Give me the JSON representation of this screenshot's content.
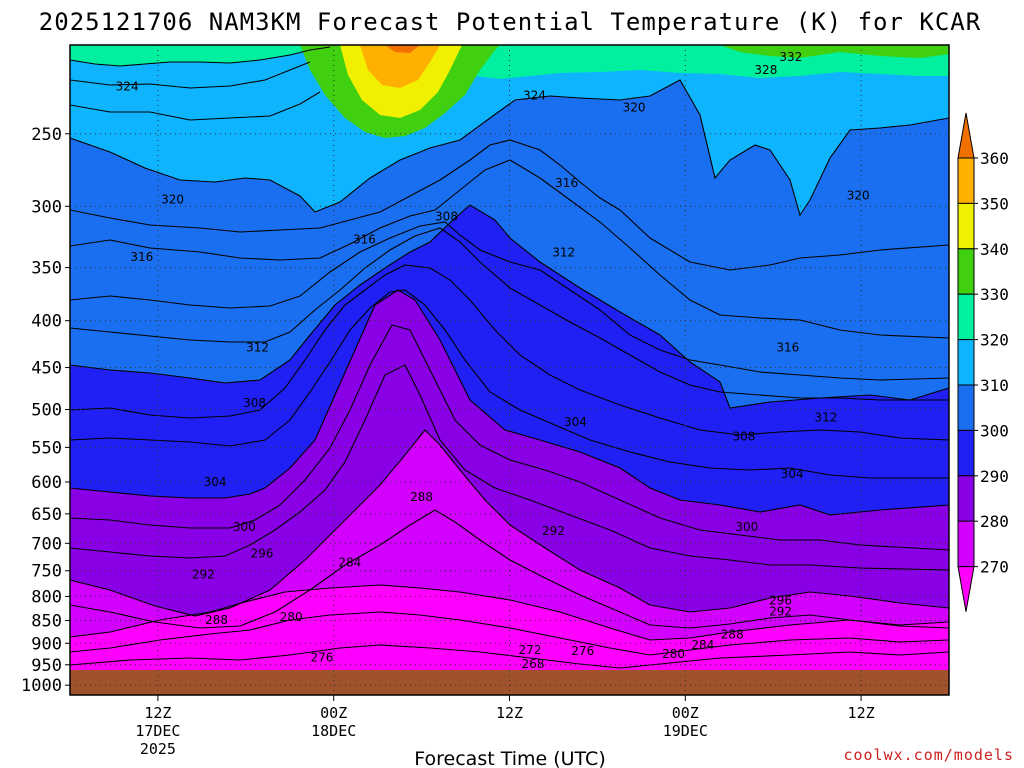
{
  "chart_data": {
    "type": "heatmap",
    "title": "2025121706 NAM3KM Forecast Potential Temperature (K) for KCAR",
    "xlabel": "Forecast Time (UTC)",
    "ylabel": "",
    "credit": "coolwx.com/models",
    "x_ticks": [
      {
        "h": 6,
        "line1": "12Z",
        "line2": "17DEC",
        "line3": "2025"
      },
      {
        "h": 18,
        "line1": "00Z",
        "line2": "18DEC",
        "line3": ""
      },
      {
        "h": 30,
        "line1": "12Z",
        "line2": "",
        "line3": ""
      },
      {
        "h": 42,
        "line1": "00Z",
        "line2": "19DEC",
        "line3": ""
      },
      {
        "h": 54,
        "line1": "12Z",
        "line2": "",
        "line3": ""
      }
    ],
    "x_range_hours": [
      0,
      60
    ],
    "y_ticks_hpa": [
      "250",
      "300",
      "350",
      "400",
      "450",
      "500",
      "550",
      "600",
      "650",
      "700",
      "750",
      "800",
      "850",
      "900",
      "950",
      "1000"
    ],
    "y_range_hpa": [
      200,
      1025
    ],
    "colorbar": {
      "levels": [
        "270",
        "280",
        "290",
        "300",
        "310",
        "320",
        "330",
        "340",
        "350",
        "360"
      ],
      "colors": [
        "#ff00ff",
        "#d200ff",
        "#8a00e6",
        "#2020f5",
        "#1a6ff0",
        "#0fb4ff",
        "#00f0a0",
        "#40d010",
        "#f0f000",
        "#ffb000",
        "#f07000"
      ]
    },
    "contour_labels": [
      {
        "text": "324",
        "h": 3.9,
        "p": 222
      },
      {
        "text": "320",
        "h": 7.0,
        "p": 295
      },
      {
        "text": "316",
        "h": 4.9,
        "p": 341
      },
      {
        "text": "312",
        "h": 12.8,
        "p": 428
      },
      {
        "text": "308",
        "h": 12.6,
        "p": 492
      },
      {
        "text": "304",
        "h": 9.9,
        "p": 600
      },
      {
        "text": "300",
        "h": 11.9,
        "p": 672
      },
      {
        "text": "296",
        "h": 13.1,
        "p": 718
      },
      {
        "text": "292",
        "h": 9.1,
        "p": 757
      },
      {
        "text": "288",
        "h": 10.0,
        "p": 849
      },
      {
        "text": "280",
        "h": 15.1,
        "p": 842
      },
      {
        "text": "276",
        "h": 17.2,
        "p": 933
      },
      {
        "text": "316",
        "h": 20.1,
        "p": 326
      },
      {
        "text": "308",
        "h": 25.7,
        "p": 308
      },
      {
        "text": "288",
        "h": 24.0,
        "p": 623
      },
      {
        "text": "284",
        "h": 19.1,
        "p": 735
      },
      {
        "text": "324",
        "h": 31.7,
        "p": 227
      },
      {
        "text": "316",
        "h": 33.9,
        "p": 283
      },
      {
        "text": "312",
        "h": 33.7,
        "p": 337
      },
      {
        "text": "304",
        "h": 34.5,
        "p": 516
      },
      {
        "text": "292",
        "h": 33.0,
        "p": 679
      },
      {
        "text": "272",
        "h": 31.4,
        "p": 915
      },
      {
        "text": "268",
        "h": 31.6,
        "p": 948
      },
      {
        "text": "276",
        "h": 35.0,
        "p": 918
      },
      {
        "text": "320",
        "h": 38.5,
        "p": 234
      },
      {
        "text": "280",
        "h": 41.2,
        "p": 925
      },
      {
        "text": "284",
        "h": 43.2,
        "p": 904
      },
      {
        "text": "288",
        "h": 45.2,
        "p": 880
      },
      {
        "text": "308",
        "h": 46.0,
        "p": 535
      },
      {
        "text": "300",
        "h": 46.2,
        "p": 672
      },
      {
        "text": "328",
        "h": 47.5,
        "p": 213
      },
      {
        "text": "332",
        "h": 49.2,
        "p": 206
      },
      {
        "text": "316",
        "h": 49.0,
        "p": 428
      },
      {
        "text": "312",
        "h": 51.6,
        "p": 510
      },
      {
        "text": "304",
        "h": 49.3,
        "p": 588
      },
      {
        "text": "296",
        "h": 48.5,
        "p": 808
      },
      {
        "text": "292",
        "h": 48.5,
        "p": 831
      },
      {
        "text": "320",
        "h": 53.8,
        "p": 292
      }
    ]
  }
}
